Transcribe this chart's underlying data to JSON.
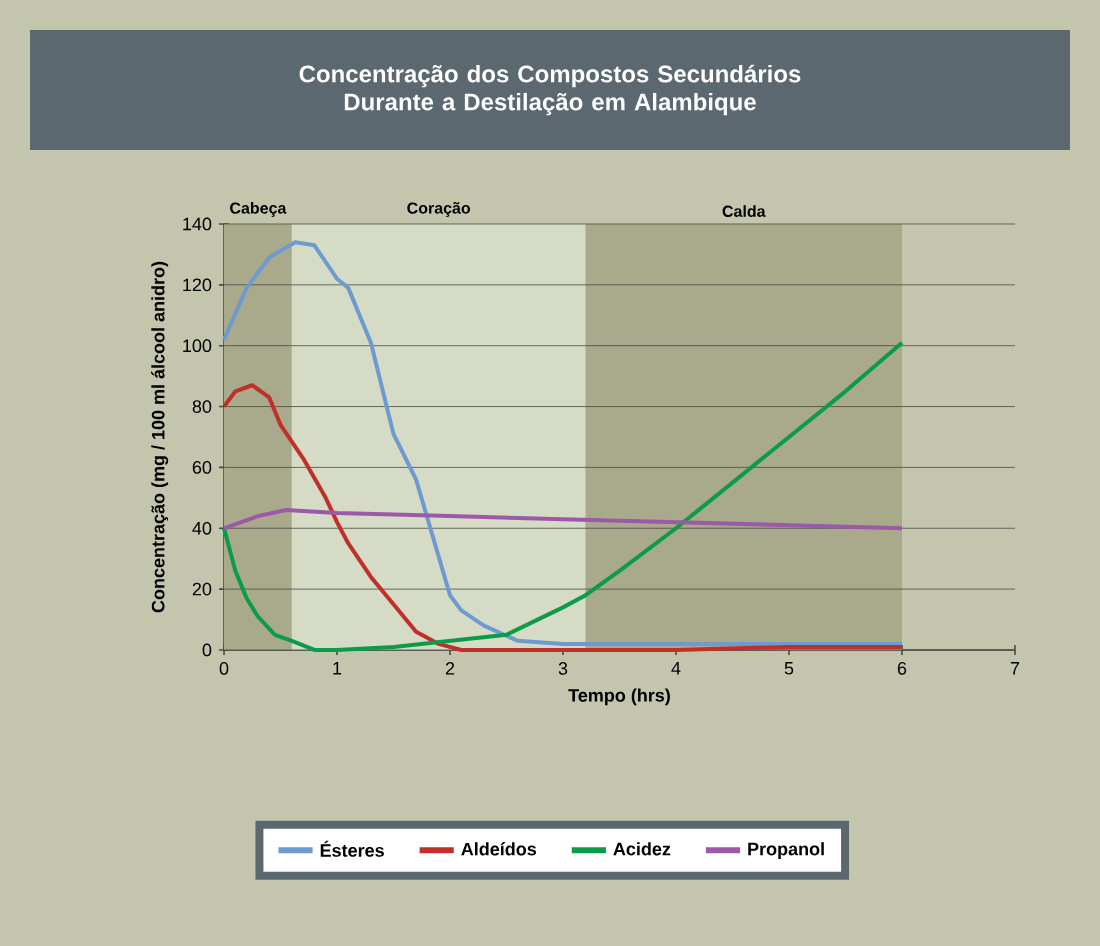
{
  "chart_data": {
    "type": "line",
    "title": "Concentração dos Compostos Secundários Durante a Destilação em Alambique",
    "xlabel": "Tempo (hrs)",
    "ylabel": "Concentração (mg / 100 ml álcool anidro)",
    "xlim": [
      0,
      7
    ],
    "xticks": [
      0,
      1,
      2,
      3,
      4,
      5,
      6,
      7
    ],
    "ylim": [
      0,
      140
    ],
    "yticks": [
      0,
      20,
      40,
      60,
      80,
      100,
      120,
      140
    ],
    "grid": "y",
    "legend": "bottom",
    "marker": "none",
    "line_style": "solid",
    "bands": [
      {
        "axis": "x",
        "from": 0,
        "to": 0.6,
        "label": "Cabeça",
        "color": "#a9a98c"
      },
      {
        "axis": "x",
        "from": 0.6,
        "to": 3.2,
        "label": "Coração",
        "color": "#d6dbc6"
      },
      {
        "axis": "x",
        "from": 3.2,
        "to": 6,
        "label": "Calda",
        "color": "#a9a98c"
      }
    ],
    "series": [
      {
        "name": "Ésteres",
        "color": "#6d9bd0",
        "x": [
          0,
          0.2,
          0.4,
          0.63,
          0.8,
          1.0,
          1.1,
          1.3,
          1.5,
          1.7,
          1.85,
          2.0,
          2.1,
          2.3,
          2.6,
          3.0,
          4.0,
          5.0,
          6.0
        ],
        "values": [
          102,
          119,
          129,
          134,
          133,
          122,
          119,
          101,
          71,
          56,
          37,
          18,
          13,
          8,
          3,
          2,
          2,
          2,
          2
        ]
      },
      {
        "name": "Aldeídos",
        "color": "#c0302a",
        "x": [
          0,
          0.1,
          0.25,
          0.4,
          0.5,
          0.7,
          0.9,
          1.0,
          1.1,
          1.3,
          1.5,
          1.7,
          1.9,
          2.0,
          2.1,
          3.0,
          4.0,
          5.0,
          6.0
        ],
        "values": [
          80,
          85,
          87,
          83,
          74,
          63,
          50,
          42,
          35,
          24,
          15,
          6,
          2,
          1,
          0,
          0,
          0,
          1,
          1
        ]
      },
      {
        "name": "Acidez",
        "color": "#0a9c48",
        "x": [
          0,
          0.1,
          0.2,
          0.3,
          0.45,
          0.6,
          0.8,
          1.0,
          1.5,
          2.0,
          2.5,
          3.0,
          3.2,
          3.5,
          4.0,
          4.5,
          5.0,
          5.5,
          6.0
        ],
        "values": [
          40,
          26,
          17,
          11,
          5,
          3,
          0,
          0,
          1,
          3,
          5,
          14,
          18,
          26,
          40,
          55,
          70,
          85,
          101
        ]
      },
      {
        "name": "Propanol",
        "color": "#9b59a8",
        "x": [
          0,
          0.3,
          0.55,
          1.0,
          2.0,
          3.0,
          4.0,
          5.0,
          6.0
        ],
        "values": [
          40,
          44,
          46,
          45,
          44,
          43,
          42,
          41,
          40
        ]
      }
    ]
  }
}
